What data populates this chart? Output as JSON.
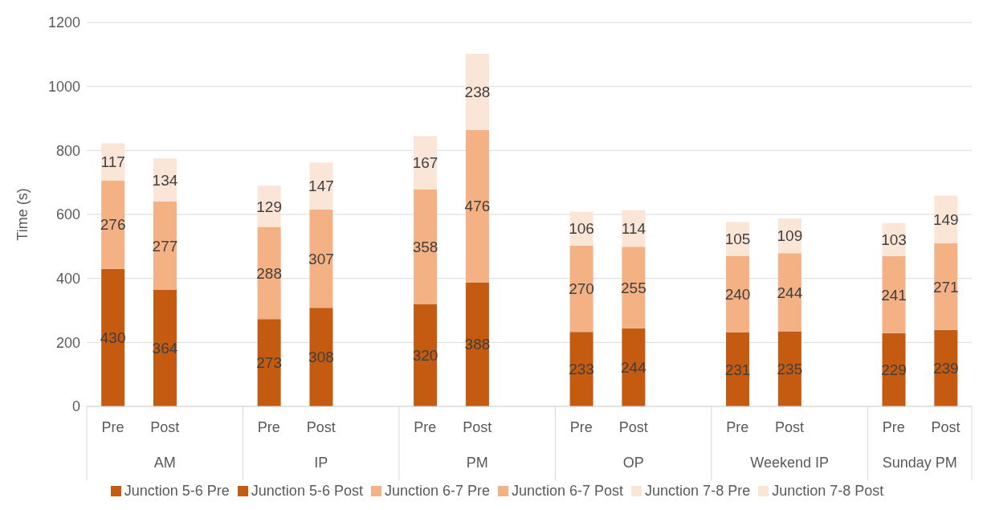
{
  "chart_data": {
    "type": "bar",
    "stacked": true,
    "ylabel": "Time (s)",
    "categories": [
      "Pre",
      "Post",
      null,
      "Pre",
      "Post",
      null,
      "Pre",
      "Post",
      null,
      "Pre",
      "Post",
      null,
      "Pre",
      "Post",
      null,
      "Pre",
      "Post"
    ],
    "annotations": [
      "AM",
      "IP",
      "PM",
      "OP",
      "Weekend IP",
      "Sunday PM"
    ],
    "series": [
      {
        "name": "Junction 5-6 Pre",
        "color": "#c55a11",
        "values": [
          430,
          null,
          null,
          273,
          null,
          null,
          320,
          null,
          null,
          233,
          null,
          null,
          231,
          null,
          null,
          229,
          null
        ]
      },
      {
        "name": "Junction 5-6 Post",
        "color": "#c55a11",
        "values": [
          null,
          364,
          null,
          null,
          308,
          null,
          null,
          388,
          null,
          null,
          244,
          null,
          null,
          235,
          null,
          null,
          239
        ]
      },
      {
        "name": "Junction 6-7 Pre",
        "color": "#f4b183",
        "values": [
          276,
          null,
          null,
          288,
          null,
          null,
          358,
          null,
          null,
          270,
          null,
          null,
          240,
          null,
          null,
          241,
          null
        ]
      },
      {
        "name": "Junction 6-7 Post",
        "color": "#f4b183",
        "values": [
          null,
          277,
          null,
          null,
          307,
          null,
          null,
          476,
          null,
          null,
          255,
          null,
          null,
          244,
          null,
          null,
          271
        ]
      },
      {
        "name": "Junction 7-8 Pre",
        "color": "#fbe5d6",
        "values": [
          117,
          null,
          null,
          129,
          null,
          null,
          167,
          null,
          null,
          106,
          null,
          null,
          105,
          null,
          null,
          103,
          null
        ]
      },
      {
        "name": "Junction 7-8 Post",
        "color": "#fbe5d6",
        "values": [
          null,
          134,
          null,
          null,
          147,
          null,
          null,
          238,
          null,
          null,
          114,
          null,
          null,
          109,
          null,
          null,
          149
        ]
      }
    ],
    "ylim": [
      0,
      1200
    ],
    "yticks": [
      0,
      200,
      400,
      600,
      800,
      1000,
      1200
    ],
    "grid": "y",
    "legend": "bottom",
    "data_labels": true
  }
}
